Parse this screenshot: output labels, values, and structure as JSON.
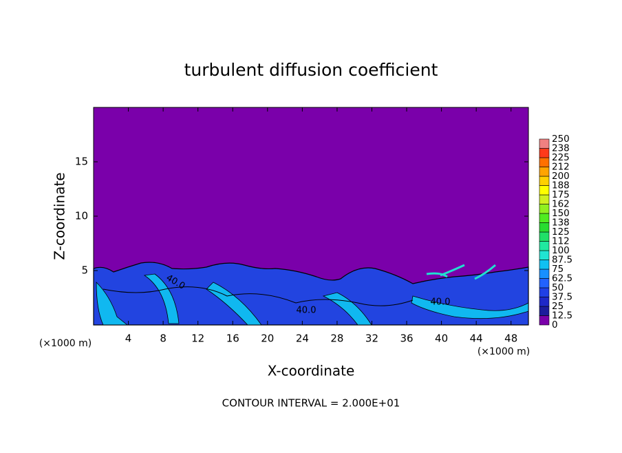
{
  "chart_data": {
    "type": "contour",
    "title": "turbulent diffusion coefficient",
    "xlabel": "X-coordinate",
    "ylabel": "Z-coordinate",
    "x_unit": "(×1000 m)",
    "y_unit": "(×1000 m)",
    "footnote": "CONTOUR INTERVAL = 2.000E+01",
    "xlim": [
      0,
      50
    ],
    "xticks": [
      4,
      8,
      12,
      16,
      20,
      24,
      28,
      32,
      36,
      40,
      44,
      48
    ],
    "ylim": [
      0,
      20
    ],
    "yticks": [
      5,
      10,
      15
    ],
    "contour_labels": [
      "40.0",
      "40.0",
      "40.0"
    ],
    "colorbar": {
      "levels": [
        0,
        12.5,
        25,
        37.5,
        50,
        62.5,
        75,
        87.5,
        100,
        112,
        125,
        138,
        150,
        162,
        175,
        188,
        200,
        212,
        225,
        238,
        250
      ],
      "colors": [
        "#7a00aa",
        "#1c1c9c",
        "#1e28c8",
        "#2040e6",
        "#2262ff",
        "#1890ff",
        "#10c0f2",
        "#20e4d2",
        "#20e8a0",
        "#20e068",
        "#28dc30",
        "#50ec20",
        "#90f020",
        "#d0f020",
        "#ffff00",
        "#ffd000",
        "#ffa400",
        "#ff7000",
        "#ff3a1a",
        "#f08080"
      ]
    }
  }
}
